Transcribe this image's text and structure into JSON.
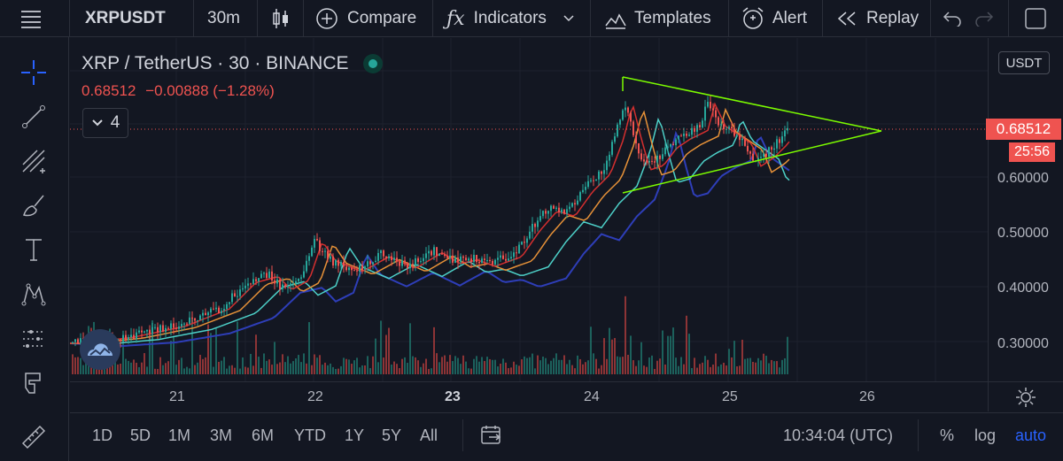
{
  "toolbar": {
    "symbol": "XRPUSDT",
    "interval": "30m",
    "compare_label": "Compare",
    "indicators_label": "Indicators",
    "templates_label": "Templates",
    "alert_label": "Alert",
    "replay_label": "Replay"
  },
  "left_tools": [
    "menu-icon",
    "crosshair-icon",
    "trend-line-icon",
    "fib-icon",
    "brush-icon",
    "text-icon",
    "pattern-icon",
    "measure-icon",
    "magnet-icon",
    "ruler-icon"
  ],
  "legend": {
    "title": "XRP / TetherUS · 30 · BINANCE",
    "price": "0.68512",
    "change": "−0.00888 (−1.28%)",
    "indicator_count": "4"
  },
  "price_axis": {
    "currency": "USDT",
    "labels": [
      "0.60000",
      "0.50000",
      "0.40000",
      "0.30000"
    ],
    "current_price": "0.68512",
    "countdown": "25:56"
  },
  "time_axis": {
    "labels": [
      "21",
      "22",
      "23",
      "24",
      "25",
      "26"
    ],
    "bold_label": "23"
  },
  "bottom": {
    "ranges": [
      "1D",
      "5D",
      "1M",
      "3M",
      "6M",
      "YTD",
      "1Y",
      "5Y",
      "All"
    ],
    "clock": "10:34:04 (UTC)",
    "percent": "%",
    "log": "log",
    "auto": "auto"
  },
  "colors": {
    "background": "#131722",
    "up": "#26a69a",
    "down": "#ef5350",
    "triangle": "#7cfc00",
    "ma_red": "#d32f2f",
    "ma_orange": "#e69138",
    "ma_teal": "#4dd0c8",
    "ma_blue": "#2e3eb8",
    "accent": "#2962ff"
  }
}
